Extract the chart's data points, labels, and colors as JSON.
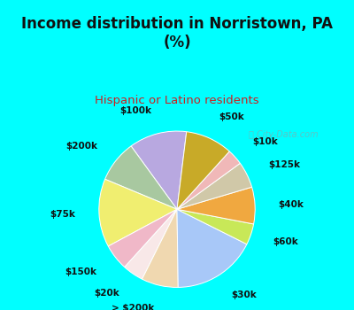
{
  "title": "Income distribution in Norristown, PA\n(%)",
  "subtitle": "Hispanic or Latino residents",
  "labels": [
    "$100k",
    "$200k",
    "$75k",
    "$150k",
    "$20k",
    "> $200k",
    "$30k",
    "$60k",
    "$40k",
    "$125k",
    "$10k",
    "$50k"
  ],
  "sizes": [
    11,
    8,
    13,
    5,
    4,
    7,
    16,
    4,
    7,
    5,
    3,
    9
  ],
  "colors": [
    "#b8a8e0",
    "#a8c8a0",
    "#f0ee70",
    "#f0b8c8",
    "#f8e8e8",
    "#f0d8b0",
    "#a8c8f8",
    "#c8e858",
    "#f0a840",
    "#d0c8a8",
    "#f0b8b8",
    "#c8aa28"
  ],
  "bg_color_top": "#e8f8f0",
  "bg_color": "#d8f0e0",
  "fig_bg": "#00ffff",
  "title_color": "#111111",
  "subtitle_color": "#cc2020",
  "watermark": "City-Data.com",
  "startangle": 83,
  "label_fontsize": 7.5,
  "title_fontsize": 12,
  "subtitle_fontsize": 9.5
}
